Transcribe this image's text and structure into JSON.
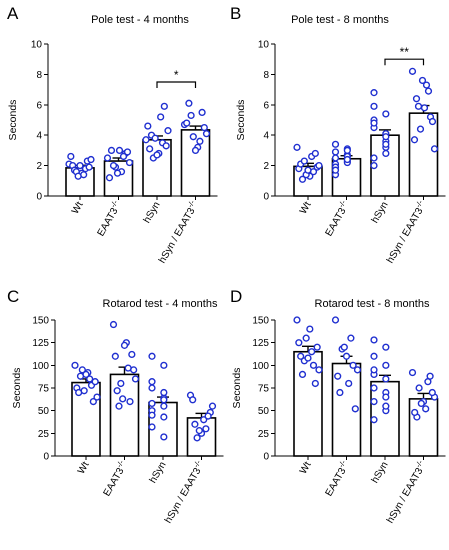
{
  "chart_data": [
    {
      "panel_letter": "A",
      "type": "bar",
      "title": "Pole test - 4 months",
      "ylabel": "Seconds",
      "ylim": [
        0,
        10
      ],
      "yticks": [
        0,
        2,
        4,
        6,
        8,
        10
      ],
      "categories": [
        "Wt",
        "EAAT3-/-",
        "hSyn",
        "hSyn / EAAT3-/-"
      ],
      "values": [
        1.85,
        2.3,
        3.7,
        4.35
      ],
      "errors": [
        0.17,
        0.2,
        0.25,
        0.25
      ],
      "points": [
        [
          2.1,
          1.5,
          2.6,
          1.4,
          2.0,
          1.8,
          1.7,
          2.3,
          1.6,
          1.9,
          1.3,
          2.4,
          2.0
        ],
        [
          2.5,
          1.6,
          3.0,
          2.8,
          1.9,
          2.2,
          3.0,
          1.2,
          2.6,
          2.0,
          2.9,
          1.5
        ],
        [
          3.7,
          2.8,
          4.6,
          5.2,
          3.1,
          3.5,
          4.0,
          5.9,
          2.5,
          3.3,
          3.8,
          4.3,
          2.7
        ],
        [
          4.7,
          3.6,
          5.3,
          4.1,
          3.2,
          6.1,
          4.5,
          3.0,
          4.8,
          5.5,
          3.9
        ]
      ],
      "significance": {
        "from": 2,
        "to": 3,
        "label": "*",
        "y": 7.5
      },
      "grid": false
    },
    {
      "panel_letter": "B",
      "type": "bar",
      "title": "Pole test - 8 months",
      "ylabel": "Seconds",
      "ylim": [
        0,
        10
      ],
      "yticks": [
        0,
        2,
        4,
        6,
        8,
        10
      ],
      "categories": [
        "Wt",
        "EAAT3-/-",
        "hSyn",
        "hSyn / EAAT3-/-"
      ],
      "values": [
        1.95,
        2.45,
        4.0,
        5.45
      ],
      "errors": [
        0.2,
        0.2,
        0.35,
        0.5
      ],
      "points": [
        [
          3.2,
          1.3,
          1.8,
          2.6,
          2.1,
          1.6,
          1.1,
          2.8,
          2.3,
          1.9,
          1.4,
          2.0,
          1.7
        ],
        [
          3.4,
          2.7,
          2.1,
          2.3,
          1.4,
          2.6,
          1.9,
          3.1,
          2.9,
          2.2,
          1.7,
          3.0,
          2.5,
          2.4
        ],
        [
          6.8,
          4.1,
          5.9,
          3.2,
          5.0,
          2.8,
          4.5,
          3.6,
          2.0,
          3.9,
          4.8,
          3.4,
          2.5,
          5.4
        ],
        [
          8.2,
          7.3,
          6.4,
          5.2,
          4.4,
          3.1,
          5.8,
          3.7,
          6.9,
          5.9,
          4.9,
          7.6
        ]
      ],
      "significance": {
        "from": 2,
        "to": 3,
        "label": "**",
        "y": 9.0
      },
      "grid": false
    },
    {
      "panel_letter": "C",
      "type": "bar",
      "title": "Rotarod test - 4 months",
      "ylabel": "Seconds",
      "ylim": [
        0,
        150
      ],
      "yticks": [
        0,
        25,
        50,
        75,
        100,
        125,
        150
      ],
      "categories": [
        "Wt",
        "EAAT3-/-",
        "hSyn",
        "hSyn / EAAT3-/-"
      ],
      "values": [
        81,
        90,
        59,
        42
      ],
      "errors": [
        4,
        8,
        6,
        5
      ],
      "points": [
        [
          100,
          92,
          75,
          85,
          70,
          78,
          88,
          60,
          95,
          82,
          72,
          65,
          90
        ],
        [
          145,
          125,
          110,
          97,
          72,
          60,
          55,
          112,
          80,
          95,
          63,
          85,
          122
        ],
        [
          110,
          100,
          75,
          64,
          50,
          43,
          32,
          21,
          58,
          70,
          45,
          55,
          82,
          62
        ],
        [
          67,
          30,
          20,
          55,
          40,
          35,
          48,
          25,
          62,
          44,
          28
        ]
      ],
      "grid": false
    },
    {
      "panel_letter": "D",
      "type": "bar",
      "title": "Rotarod test - 8 months",
      "ylabel": "Seconds",
      "ylim": [
        0,
        150
      ],
      "yticks": [
        0,
        25,
        50,
        75,
        100,
        125,
        150
      ],
      "categories": [
        "Wt",
        "EAAT3-/-",
        "hSyn",
        "hSyn / EAAT3-/-"
      ],
      "values": [
        115,
        102,
        82,
        63
      ],
      "errors": [
        6,
        8,
        7,
        6
      ],
      "points": [
        [
          150,
          140,
          125,
          115,
          110,
          100,
          90,
          80,
          105,
          120,
          130,
          95,
          108
        ],
        [
          150,
          130,
          118,
          95,
          80,
          70,
          52,
          110,
          88,
          100,
          120
        ],
        [
          128,
          100,
          90,
          70,
          60,
          50,
          40,
          85,
          75,
          65,
          110,
          55,
          95,
          120
        ],
        [
          92,
          82,
          75,
          65,
          52,
          43,
          70,
          60,
          48,
          88,
          58
        ]
      ],
      "grid": false
    }
  ]
}
